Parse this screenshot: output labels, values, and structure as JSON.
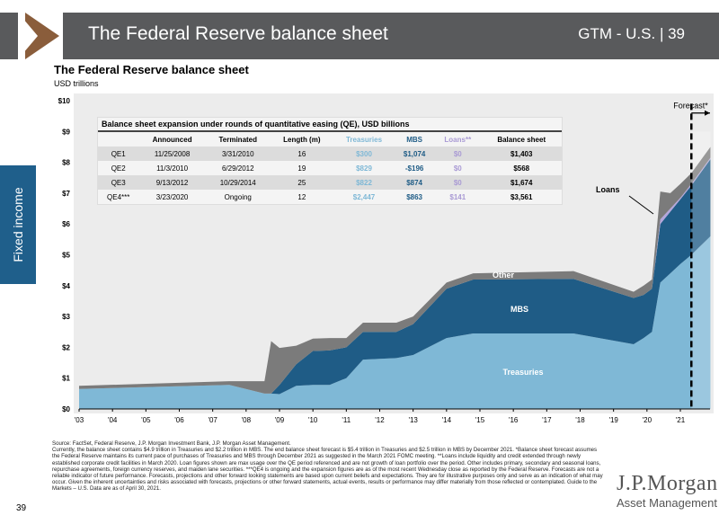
{
  "header": {
    "title": "The Federal Reserve balance sheet",
    "right": "GTM - U.S.  |  39"
  },
  "side_tab": "Fixed income",
  "page_number": "39",
  "logo": {
    "line1": "J.P.Morgan",
    "line2": "Asset Management"
  },
  "table": {
    "caption": "Balance sheet expansion under rounds of quantitative easing (QE), USD billions",
    "headers": [
      "",
      "Announced",
      "Terminated",
      "Length (m)",
      "Treasuries",
      "MBS",
      "Loans**",
      "Balance sheet"
    ],
    "rows": [
      [
        "QE1",
        "11/25/2008",
        "3/31/2010",
        "16",
        "$300",
        "$1,074",
        "$0",
        "$1,403"
      ],
      [
        "QE2",
        "11/3/2010",
        "6/29/2012",
        "19",
        "$829",
        "-$196",
        "$0",
        "$568"
      ],
      [
        "QE3",
        "9/13/2012",
        "10/29/2014",
        "25",
        "$822",
        "$874",
        "$0",
        "$1,674"
      ],
      [
        "QE4***",
        "3/23/2020",
        "Ongoing",
        "12",
        "$2,447",
        "$863",
        "$141",
        "$3,561"
      ]
    ],
    "colors": {
      "Treasuries": "#7fb8d6",
      "MBS": "#1f5c86",
      "Loans**": "#a99ad4"
    }
  },
  "footnote": "Source: FactSet, Federal Reserve, J.P. Morgan Investment Bank, J.P. Morgan Asset Management.\nCurrently, the balance sheet contains $4.9 trillion in Treasuries and $2.2 trillion in MBS. The end balance sheet forecast is $5.4 trillion in Treasuries and $2.5 trillion in MBS by December 2021. *Balance sheet forecast assumes the Federal Reserve maintains its current pace of purchases of Treasuries and MBS through December 2021 as suggested in the March 2021 FOMC meeting. **Loans include liquidity and credit extended through newly established corporate credit facilities in March 2020. Loan figures shown are max usage over the QE period referenced and are not growth of loan portfolio over the period. Other includes primary, secondary and seasonal loans, repurchase agreements, foreign currency reserves, and maiden lane securities. ***QE4 is ongoing and the expansion figures are as of the most recent Wednesday close as reported by the Federal Reserve. Forecasts are not a reliable indicator of future performance. Forecasts, projections and other forward looking statements are based upon current beliefs and expectations. They are for illustrative purposes only and serve as an indication of what may occur. Given the inherent uncertainties and risks associated with forecasts, projections or other forward statements, actual events, results or performance may differ materially from those reflected or contemplated. Guide to the Markets – U.S. Data are as of April 30, 2021.",
  "chart_data": {
    "type": "area",
    "stacked": true,
    "title": "The Federal Reserve balance sheet",
    "ylabel": "USD trillions",
    "ylim": [
      0,
      10
    ],
    "yticks": [
      "$0",
      "$1",
      "$2",
      "$3",
      "$4",
      "$5",
      "$6",
      "$7",
      "$8",
      "$9",
      "$10"
    ],
    "xticks": [
      "'03",
      "'04",
      "'05",
      "'06",
      "'07",
      "'08",
      "'09",
      "'10",
      "'11",
      "'12",
      "'13",
      "'14",
      "'15",
      "'16",
      "'17",
      "'18",
      "'19",
      "'20",
      "'21"
    ],
    "xlim": [
      2003,
      2021.9
    ],
    "grid": false,
    "forecast_start": 2021.33,
    "forecast_label": "Forecast*",
    "x": [
      2003,
      2007.5,
      2008.55,
      2008.75,
      2009.0,
      2009.5,
      2010,
      2010.5,
      2011,
      2011.5,
      2012.5,
      2013,
      2014,
      2014.8,
      2017.8,
      2019.6,
      2019.9,
      2020.15,
      2020.4,
      2020.7,
      2021.0,
      2021.33,
      2021.9
    ],
    "series": [
      {
        "name": "Treasuries",
        "color": "#7fb8d6",
        "values": [
          0.65,
          0.78,
          0.5,
          0.5,
          0.48,
          0.75,
          0.78,
          0.78,
          1.0,
          1.6,
          1.65,
          1.75,
          2.3,
          2.45,
          2.45,
          2.1,
          2.3,
          2.5,
          4.1,
          4.4,
          4.7,
          5.0,
          5.6
        ]
      },
      {
        "name": "MBS",
        "color": "#1f5c86",
        "values": [
          0,
          0,
          0,
          0,
          0.3,
          0.7,
          1.1,
          1.12,
          1.0,
          0.9,
          0.85,
          1.0,
          1.6,
          1.75,
          1.77,
          1.5,
          1.4,
          1.4,
          1.9,
          2.0,
          2.1,
          2.25,
          2.5
        ]
      },
      {
        "name": "Loans",
        "color": "#b3a6dc",
        "values": [
          0,
          0,
          0,
          0,
          0,
          0,
          0,
          0,
          0,
          0,
          0,
          0,
          0,
          0,
          0,
          0,
          0,
          0,
          0.15,
          0.1,
          0.05,
          0.05,
          0.05
        ]
      },
      {
        "name": "Other",
        "color": "#7b7b7b",
        "values": [
          0.1,
          0.12,
          0.4,
          1.7,
          1.2,
          0.6,
          0.4,
          0.4,
          0.3,
          0.3,
          0.3,
          0.25,
          0.2,
          0.2,
          0.25,
          0.2,
          0.3,
          0.3,
          0.9,
          0.5,
          0.45,
          0.35,
          0.35
        ]
      }
    ],
    "annotations": [
      "Other",
      "MBS",
      "Treasuries",
      "Loans"
    ]
  }
}
